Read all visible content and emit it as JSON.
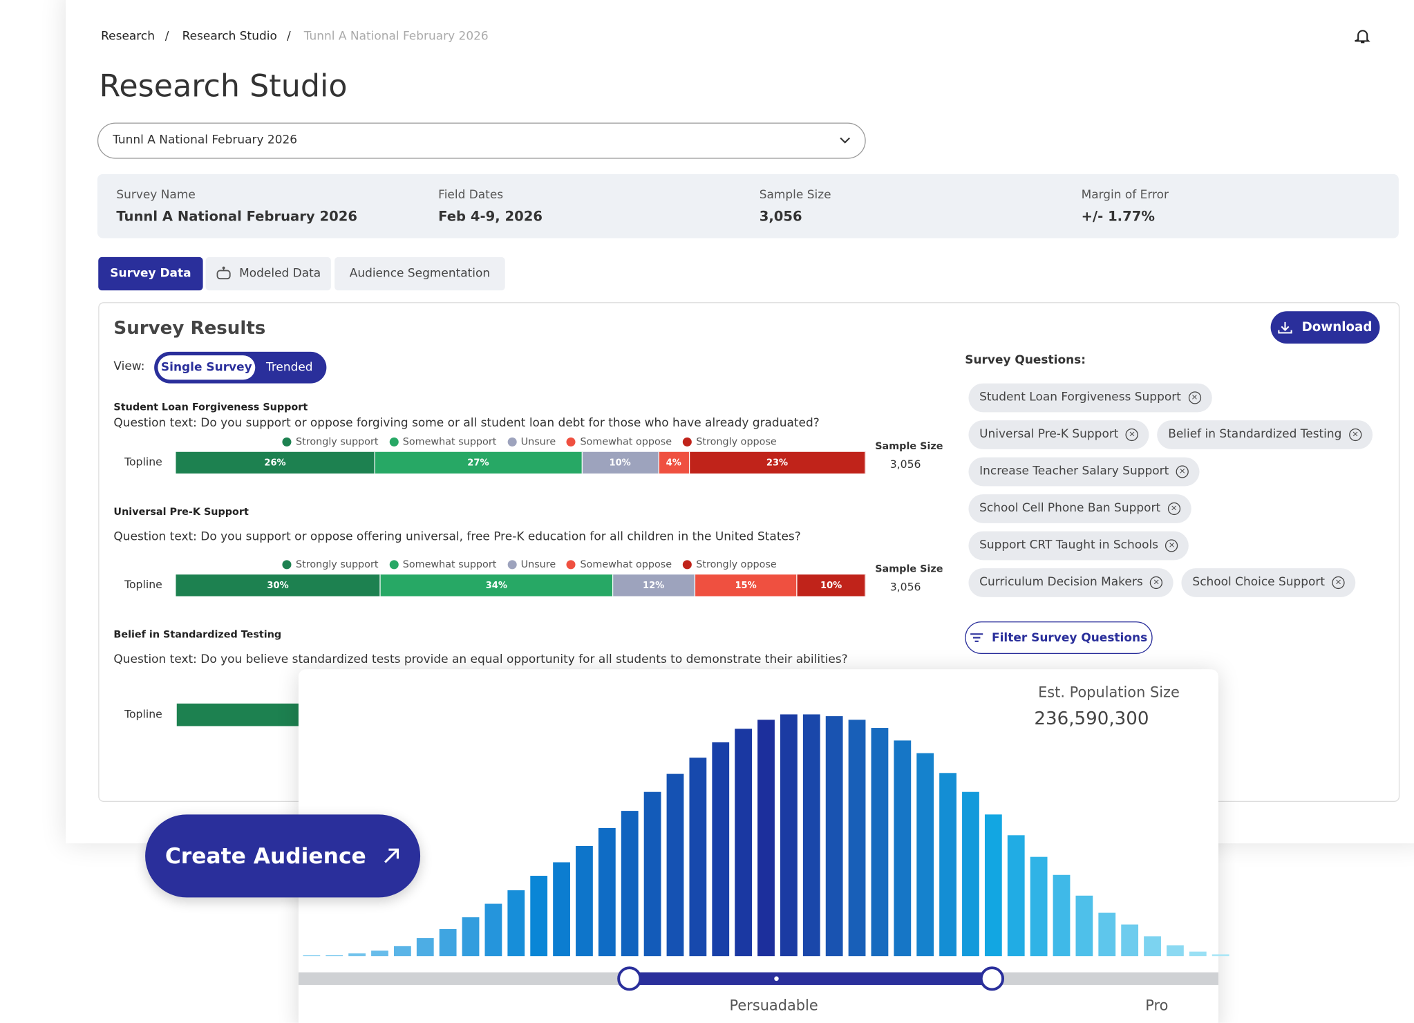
{
  "breadcrumb": [
    "Research",
    "Research Studio",
    "Tunnl A National February 2026"
  ],
  "title": "Research Studio",
  "survey_select": "Tunnl A National February 2026",
  "survey_info": [
    {
      "label": "Survey Name",
      "value": "Tunnl A National February 2026"
    },
    {
      "label": "Field Dates",
      "value": "Feb 4-9, 2026"
    },
    {
      "label": "Sample Size",
      "value": "3,056"
    },
    {
      "label": "Margin of Error",
      "value": "+/- 1.77%"
    }
  ],
  "tabs": [
    "Survey Data",
    "Modeled Data",
    "Audience Segmentation"
  ],
  "results": {
    "title": "Survey Results",
    "download": "Download",
    "view_label": "View:",
    "view_options": [
      "Single Survey",
      "Trended"
    ],
    "legend": [
      {
        "name": "Strongly support",
        "color": "#1d8150"
      },
      {
        "name": "Somewhat support",
        "color": "#27a865"
      },
      {
        "name": "Unsure",
        "color": "#9da3bd"
      },
      {
        "name": "Somewhat oppose",
        "color": "#ef5040"
      },
      {
        "name": "Strongly oppose",
        "color": "#c0231a"
      }
    ],
    "topline_label": "Topline",
    "sample_size_label": "Sample Size",
    "questions": [
      {
        "name": "Student Loan Forgiveness Support",
        "text": "Question text: Do you support or oppose forgiving some or all student loan debt for those who have already graduated?",
        "values": [
          26,
          27,
          10,
          4,
          23
        ],
        "value_labels": [
          "26%",
          "27%",
          "10%",
          "4%",
          "23%"
        ],
        "sample_size": "3,056"
      },
      {
        "name": "Universal Pre-K Support",
        "text": "Question text: Do you support or oppose offering universal, free Pre-K education for all children in the United States?",
        "values": [
          30,
          34,
          12,
          15,
          10
        ],
        "value_labels": [
          "30%",
          "34%",
          "12%",
          "15%",
          "10%"
        ],
        "sample_size": "3,056"
      },
      {
        "name": "Belief in Standardized Testing",
        "text": "Question text: Do you believe standardized tests provide an equal opportunity for all students to demonstrate their abilities?"
      }
    ]
  },
  "questions_panel": {
    "title": "Survey Questions:",
    "chips": [
      "Student Loan Forgiveness Support",
      "Universal Pre-K Support",
      "Belief in Standardized Testing",
      "Increase Teacher Salary Support",
      "School Cell Phone Ban Support",
      "Support CRT Taught in Schools",
      "Curriculum Decision Makers",
      "School Choice Support"
    ],
    "filter": "Filter Survey Questions"
  },
  "audience": {
    "button": "Create Audience",
    "population_label": "Est. Population Size",
    "population": "236,590,300",
    "distribution": [
      1,
      1,
      3,
      6,
      11,
      20,
      30,
      43,
      58,
      73,
      89,
      104,
      122,
      142,
      161,
      182,
      202,
      220,
      237,
      252,
      262,
      268,
      268,
      266,
      262,
      253,
      239,
      225,
      203,
      182,
      157,
      134,
      110,
      90,
      67,
      48,
      35,
      22,
      12,
      5,
      2
    ],
    "color_stops": [
      "#8fd3f2",
      "#0a86d6",
      "#1c2f9c",
      "#12a6e2",
      "#a9e6f6"
    ],
    "slider_labels": [
      "Persuadable",
      "Pro"
    ]
  }
}
